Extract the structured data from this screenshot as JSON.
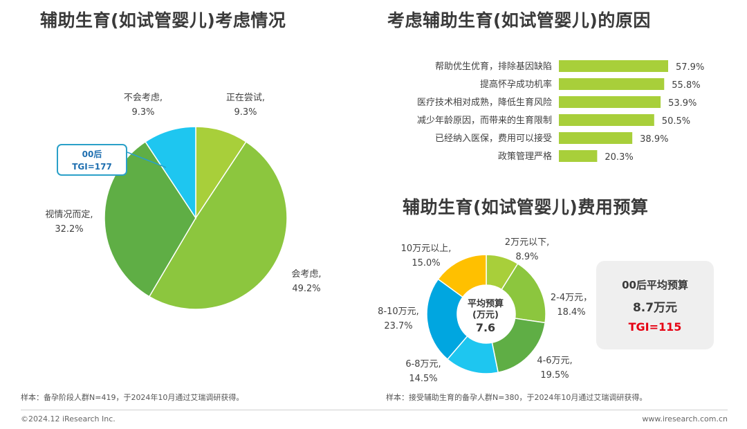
{
  "titles": {
    "left": "辅助生育(如试管婴儿)考虑情况",
    "top_right": "考虑辅助生育(如试管婴儿)的原因",
    "bottom_right": "辅助生育(如试管婴儿)费用预算"
  },
  "tgi_callout": {
    "line1": "00后",
    "line2": "TGI=177"
  },
  "donut_center": {
    "line1": "平均预算",
    "line2": "(万元)",
    "line3": "7.6"
  },
  "avg_box": {
    "line1": "00后平均预算",
    "line2": "8.7万元",
    "line3": "TGI=115"
  },
  "notes": {
    "left": "样本：备孕阶段人群N=419，于2024年10月通过艾瑞调研获得。",
    "right": "样本：接受辅助生育的备孕人群N=380，于2024年10月通过艾瑞调研获得。"
  },
  "footer": {
    "left": "©2024.12 iResearch Inc.",
    "right": "www.iresearch.com.cn"
  },
  "colors": {
    "lime": "#a8cf3a",
    "green": "#8cc63e",
    "dark_green": "#5fae45",
    "cyan": "#1ec6f0",
    "blue": "#00a6e0",
    "yellow": "#ffc000",
    "red": "#e60012"
  },
  "chart_data": [
    {
      "type": "pie",
      "categories": [
        "正在尝试,",
        "会考虑,",
        "视情况而定,",
        "不会考虑,"
      ],
      "values": [
        9.3,
        49.2,
        32.2,
        9.3
      ],
      "value_labels": [
        "9.3%",
        "49.2%",
        "32.2%",
        "9.3%"
      ],
      "title": "辅助生育(如试管婴儿)考虑情况"
    },
    {
      "type": "bar",
      "orientation": "horizontal",
      "categories": [
        "帮助优生优育，排除基因缺陷",
        "提高怀孕成功机率",
        "医疗技术相对成熟，降低生育风险",
        "减少年龄原因，而带来的生育限制",
        "已经纳入医保，费用可以接受",
        "政策管理严格"
      ],
      "values": [
        57.9,
        55.8,
        53.9,
        50.5,
        38.9,
        20.3
      ],
      "value_labels": [
        "57.9%",
        "55.8%",
        "53.9%",
        "50.5%",
        "38.9%",
        "20.3%"
      ],
      "title": "考虑辅助生育(如试管婴儿)的原因",
      "xlim": [
        0,
        60
      ]
    },
    {
      "type": "pie",
      "donut": true,
      "categories": [
        "2万元以下,",
        "2-4万元，",
        "4-6万元,",
        "6-8万元,",
        "8-10万元,",
        "10万元以上,"
      ],
      "values": [
        8.9,
        18.4,
        19.5,
        14.5,
        23.7,
        15.0
      ],
      "value_labels": [
        "8.9%",
        "18.4%",
        "19.5%",
        "14.5%",
        "23.7%",
        "15.0%"
      ],
      "title": "辅助生育(如试管婴儿)费用预算"
    }
  ]
}
